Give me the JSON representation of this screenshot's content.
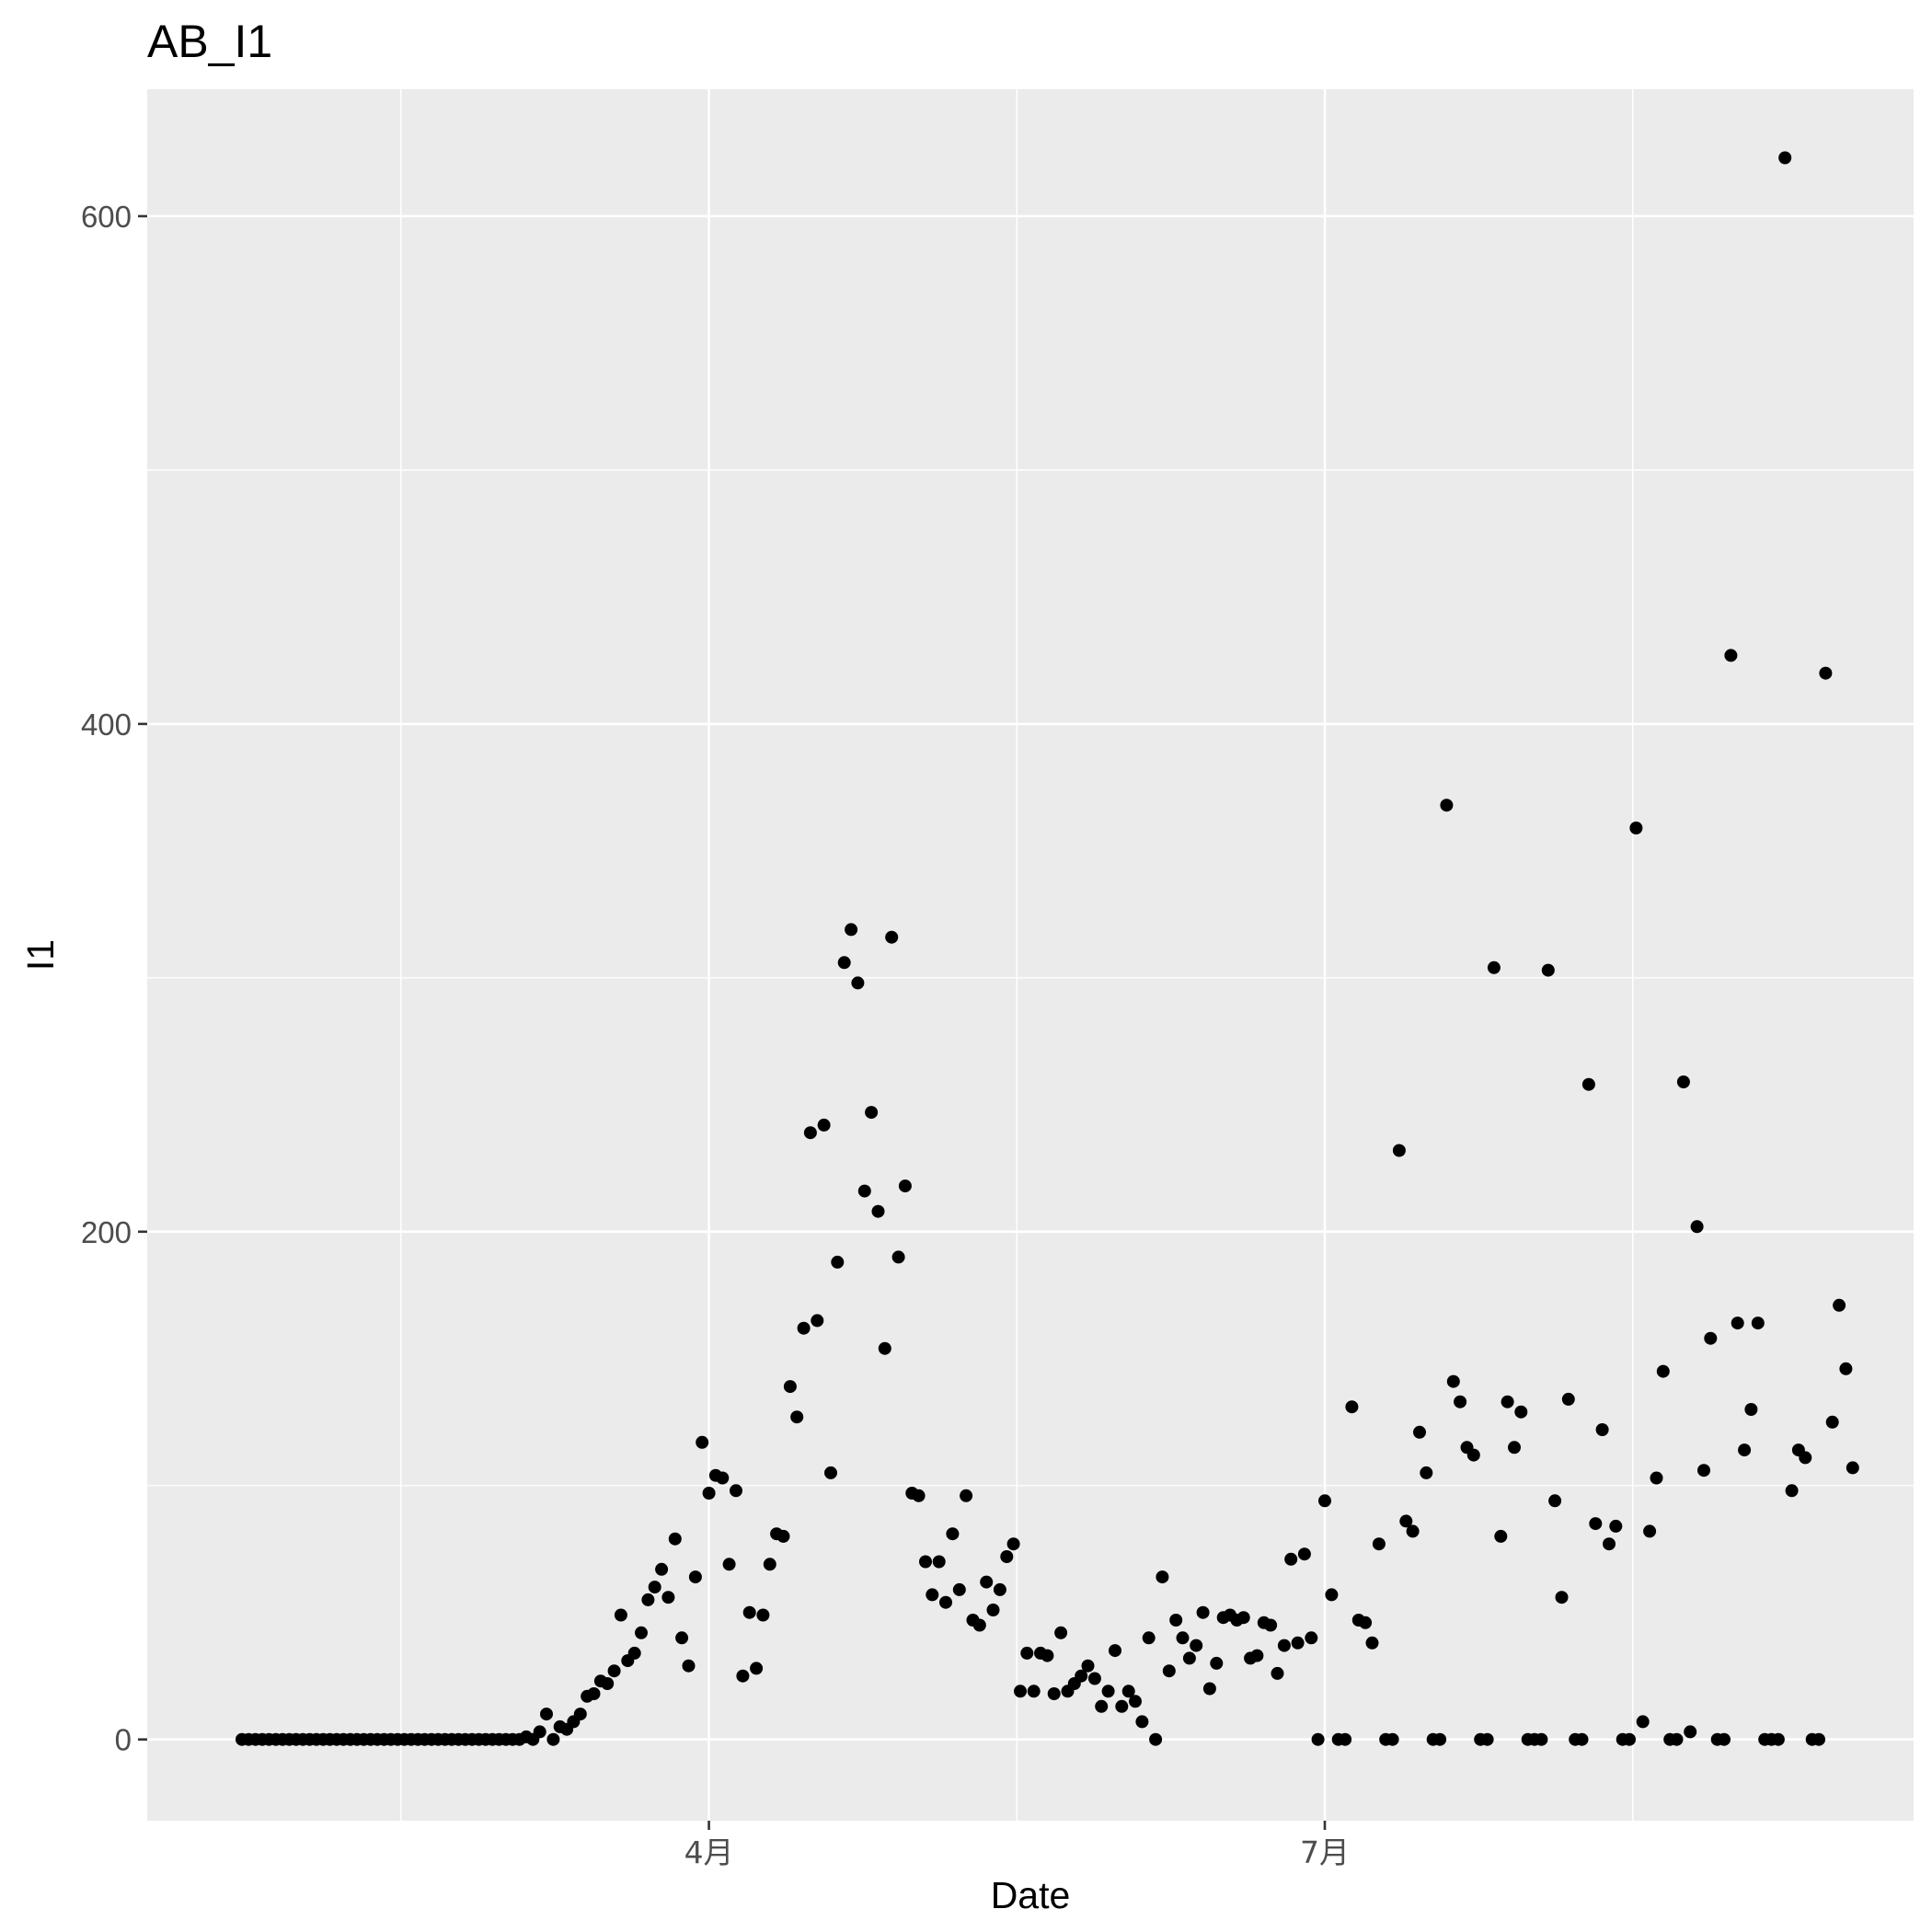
{
  "chart_data": {
    "type": "scatter",
    "title": "AB_I1",
    "xlabel": "Date",
    "ylabel": "I1",
    "x_ticks": [
      {
        "date": "2020-04-01",
        "label": "4月"
      },
      {
        "date": "2020-07-01",
        "label": "7月"
      }
    ],
    "y_ticks": [
      0,
      200,
      400,
      600
    ],
    "xlim": [
      "2020-01-09",
      "2020-09-26"
    ],
    "ylim": [
      -32,
      650
    ],
    "grid": true,
    "legend": "none",
    "colors": {
      "panel": "#ebebeb",
      "grid": "#ffffff",
      "point": "#000000",
      "tick": "#333333"
    },
    "series": [
      {
        "points": [
          [
            "2020-01-23",
            0
          ],
          [
            "2020-01-24",
            0
          ],
          [
            "2020-01-25",
            0
          ],
          [
            "2020-01-26",
            0
          ],
          [
            "2020-01-27",
            0
          ],
          [
            "2020-01-28",
            0
          ],
          [
            "2020-01-29",
            0
          ],
          [
            "2020-01-30",
            0
          ],
          [
            "2020-01-31",
            0
          ],
          [
            "2020-02-01",
            0
          ],
          [
            "2020-02-02",
            0
          ],
          [
            "2020-02-03",
            0
          ],
          [
            "2020-02-04",
            0
          ],
          [
            "2020-02-05",
            0
          ],
          [
            "2020-02-06",
            0
          ],
          [
            "2020-02-07",
            0
          ],
          [
            "2020-02-08",
            0
          ],
          [
            "2020-02-09",
            0
          ],
          [
            "2020-02-10",
            0
          ],
          [
            "2020-02-11",
            0
          ],
          [
            "2020-02-12",
            0
          ],
          [
            "2020-02-13",
            0
          ],
          [
            "2020-02-14",
            0
          ],
          [
            "2020-02-15",
            0
          ],
          [
            "2020-02-16",
            0
          ],
          [
            "2020-02-17",
            0
          ],
          [
            "2020-02-18",
            0
          ],
          [
            "2020-02-19",
            0
          ],
          [
            "2020-02-20",
            0
          ],
          [
            "2020-02-21",
            0
          ],
          [
            "2020-02-22",
            0
          ],
          [
            "2020-02-23",
            0
          ],
          [
            "2020-02-24",
            0
          ],
          [
            "2020-02-25",
            0
          ],
          [
            "2020-02-26",
            0
          ],
          [
            "2020-02-27",
            0
          ],
          [
            "2020-02-28",
            0
          ],
          [
            "2020-02-29",
            0
          ],
          [
            "2020-03-01",
            0
          ],
          [
            "2020-03-02",
            0
          ],
          [
            "2020-03-03",
            0
          ],
          [
            "2020-03-04",
            0
          ],
          [
            "2020-03-05",
            1
          ],
          [
            "2020-03-06",
            0
          ],
          [
            "2020-03-07",
            3
          ],
          [
            "2020-03-08",
            10
          ],
          [
            "2020-03-09",
            0
          ],
          [
            "2020-03-10",
            5
          ],
          [
            "2020-03-11",
            4
          ],
          [
            "2020-03-12",
            7
          ],
          [
            "2020-03-13",
            10
          ],
          [
            "2020-03-14",
            17
          ],
          [
            "2020-03-15",
            18
          ],
          [
            "2020-03-16",
            23
          ],
          [
            "2020-03-17",
            22
          ],
          [
            "2020-03-18",
            27
          ],
          [
            "2020-03-19",
            49
          ],
          [
            "2020-03-20",
            31
          ],
          [
            "2020-03-21",
            34
          ],
          [
            "2020-03-22",
            42
          ],
          [
            "2020-03-23",
            55
          ],
          [
            "2020-03-24",
            60
          ],
          [
            "2020-03-25",
            67
          ],
          [
            "2020-03-26",
            56
          ],
          [
            "2020-03-27",
            79
          ],
          [
            "2020-03-28",
            40
          ],
          [
            "2020-03-29",
            29
          ],
          [
            "2020-03-30",
            64
          ],
          [
            "2020-03-31",
            117
          ],
          [
            "2020-04-01",
            97
          ],
          [
            "2020-04-02",
            104
          ],
          [
            "2020-04-03",
            103
          ],
          [
            "2020-04-04",
            69
          ],
          [
            "2020-04-05",
            98
          ],
          [
            "2020-04-06",
            25
          ],
          [
            "2020-04-07",
            50
          ],
          [
            "2020-04-08",
            28
          ],
          [
            "2020-04-09",
            49
          ],
          [
            "2020-04-10",
            69
          ],
          [
            "2020-04-11",
            81
          ],
          [
            "2020-04-12",
            80
          ],
          [
            "2020-04-13",
            139
          ],
          [
            "2020-04-14",
            127
          ],
          [
            "2020-04-15",
            162
          ],
          [
            "2020-04-16",
            239
          ],
          [
            "2020-04-17",
            165
          ],
          [
            "2020-04-18",
            242
          ],
          [
            "2020-04-19",
            105
          ],
          [
            "2020-04-20",
            188
          ],
          [
            "2020-04-21",
            306
          ],
          [
            "2020-04-22",
            319
          ],
          [
            "2020-04-23",
            298
          ],
          [
            "2020-04-24",
            216
          ],
          [
            "2020-04-25",
            247
          ],
          [
            "2020-04-26",
            208
          ],
          [
            "2020-04-27",
            154
          ],
          [
            "2020-04-28",
            316
          ],
          [
            "2020-04-29",
            190
          ],
          [
            "2020-04-30",
            218
          ],
          [
            "2020-05-01",
            97
          ],
          [
            "2020-05-02",
            96
          ],
          [
            "2020-05-03",
            70
          ],
          [
            "2020-05-04",
            57
          ],
          [
            "2020-05-05",
            70
          ],
          [
            "2020-05-06",
            54
          ],
          [
            "2020-05-07",
            81
          ],
          [
            "2020-05-08",
            59
          ],
          [
            "2020-05-09",
            96
          ],
          [
            "2020-05-10",
            47
          ],
          [
            "2020-05-11",
            45
          ],
          [
            "2020-05-12",
            62
          ],
          [
            "2020-05-13",
            51
          ],
          [
            "2020-05-14",
            59
          ],
          [
            "2020-05-15",
            72
          ],
          [
            "2020-05-16",
            77
          ],
          [
            "2020-05-17",
            19
          ],
          [
            "2020-05-18",
            34
          ],
          [
            "2020-05-19",
            19
          ],
          [
            "2020-05-20",
            34
          ],
          [
            "2020-05-21",
            33
          ],
          [
            "2020-05-22",
            18
          ],
          [
            "2020-05-23",
            42
          ],
          [
            "2020-05-24",
            19
          ],
          [
            "2020-05-25",
            22
          ],
          [
            "2020-05-26",
            25
          ],
          [
            "2020-05-27",
            29
          ],
          [
            "2020-05-28",
            24
          ],
          [
            "2020-05-29",
            13
          ],
          [
            "2020-05-30",
            19
          ],
          [
            "2020-05-31",
            35
          ],
          [
            "2020-06-01",
            13
          ],
          [
            "2020-06-02",
            19
          ],
          [
            "2020-06-03",
            15
          ],
          [
            "2020-06-04",
            7
          ],
          [
            "2020-06-05",
            40
          ],
          [
            "2020-06-06",
            0
          ],
          [
            "2020-06-07",
            64
          ],
          [
            "2020-06-08",
            27
          ],
          [
            "2020-06-09",
            47
          ],
          [
            "2020-06-10",
            40
          ],
          [
            "2020-06-11",
            32
          ],
          [
            "2020-06-12",
            37
          ],
          [
            "2020-06-13",
            50
          ],
          [
            "2020-06-14",
            20
          ],
          [
            "2020-06-15",
            30
          ],
          [
            "2020-06-16",
            48
          ],
          [
            "2020-06-17",
            49
          ],
          [
            "2020-06-18",
            47
          ],
          [
            "2020-06-19",
            48
          ],
          [
            "2020-06-20",
            32
          ],
          [
            "2020-06-21",
            33
          ],
          [
            "2020-06-22",
            46
          ],
          [
            "2020-06-23",
            45
          ],
          [
            "2020-06-24",
            26
          ],
          [
            "2020-06-25",
            37
          ],
          [
            "2020-06-26",
            71
          ],
          [
            "2020-06-27",
            38
          ],
          [
            "2020-06-28",
            73
          ],
          [
            "2020-06-29",
            40
          ],
          [
            "2020-06-30",
            0
          ],
          [
            "2020-07-01",
            94
          ],
          [
            "2020-07-02",
            57
          ],
          [
            "2020-07-03",
            0
          ],
          [
            "2020-07-04",
            0
          ],
          [
            "2020-07-05",
            131
          ],
          [
            "2020-07-06",
            47
          ],
          [
            "2020-07-07",
            46
          ],
          [
            "2020-07-08",
            38
          ],
          [
            "2020-07-09",
            77
          ],
          [
            "2020-07-10",
            0
          ],
          [
            "2020-07-11",
            0
          ],
          [
            "2020-07-12",
            232
          ],
          [
            "2020-07-13",
            86
          ],
          [
            "2020-07-14",
            82
          ],
          [
            "2020-07-15",
            121
          ],
          [
            "2020-07-16",
            105
          ],
          [
            "2020-07-17",
            0
          ],
          [
            "2020-07-18",
            0
          ],
          [
            "2020-07-19",
            368
          ],
          [
            "2020-07-20",
            141
          ],
          [
            "2020-07-21",
            133
          ],
          [
            "2020-07-22",
            115
          ],
          [
            "2020-07-23",
            112
          ],
          [
            "2020-07-24",
            0
          ],
          [
            "2020-07-25",
            0
          ],
          [
            "2020-07-26",
            304
          ],
          [
            "2020-07-27",
            80
          ],
          [
            "2020-07-28",
            133
          ],
          [
            "2020-07-29",
            115
          ],
          [
            "2020-07-30",
            129
          ],
          [
            "2020-07-31",
            0
          ],
          [
            "2020-08-01",
            0
          ],
          [
            "2020-08-02",
            0
          ],
          [
            "2020-08-03",
            303
          ],
          [
            "2020-08-04",
            94
          ],
          [
            "2020-08-05",
            56
          ],
          [
            "2020-08-06",
            134
          ],
          [
            "2020-08-07",
            0
          ],
          [
            "2020-08-08",
            0
          ],
          [
            "2020-08-09",
            258
          ],
          [
            "2020-08-10",
            85
          ],
          [
            "2020-08-11",
            122
          ],
          [
            "2020-08-12",
            77
          ],
          [
            "2020-08-13",
            84
          ],
          [
            "2020-08-14",
            0
          ],
          [
            "2020-08-15",
            0
          ],
          [
            "2020-08-16",
            359
          ],
          [
            "2020-08-17",
            7
          ],
          [
            "2020-08-18",
            82
          ],
          [
            "2020-08-19",
            103
          ],
          [
            "2020-08-20",
            145
          ],
          [
            "2020-08-21",
            0
          ],
          [
            "2020-08-22",
            0
          ],
          [
            "2020-08-23",
            259
          ],
          [
            "2020-08-24",
            3
          ],
          [
            "2020-08-25",
            202
          ],
          [
            "2020-08-26",
            106
          ],
          [
            "2020-08-27",
            158
          ],
          [
            "2020-08-28",
            0
          ],
          [
            "2020-08-29",
            0
          ],
          [
            "2020-08-30",
            427
          ],
          [
            "2020-08-31",
            164
          ],
          [
            "2020-09-01",
            114
          ],
          [
            "2020-09-02",
            130
          ],
          [
            "2020-09-03",
            164
          ],
          [
            "2020-09-04",
            0
          ],
          [
            "2020-09-05",
            0
          ],
          [
            "2020-09-06",
            0
          ],
          [
            "2020-09-07",
            623
          ],
          [
            "2020-09-08",
            98
          ],
          [
            "2020-09-09",
            114
          ],
          [
            "2020-09-10",
            111
          ],
          [
            "2020-09-11",
            0
          ],
          [
            "2020-09-12",
            0
          ],
          [
            "2020-09-13",
            420
          ],
          [
            "2020-09-14",
            125
          ],
          [
            "2020-09-15",
            171
          ],
          [
            "2020-09-16",
            146
          ],
          [
            "2020-09-17",
            107
          ]
        ]
      }
    ]
  }
}
